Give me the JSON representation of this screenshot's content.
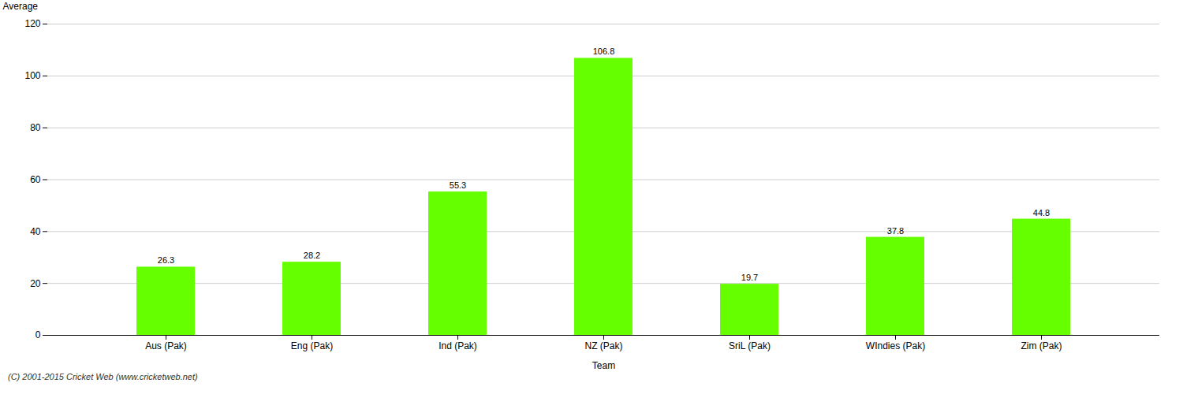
{
  "chart_data": {
    "type": "bar",
    "categories": [
      "Aus (Pak)",
      "Eng (Pak)",
      "Ind (Pak)",
      "NZ (Pak)",
      "SriL (Pak)",
      "WIndies (Pak)",
      "Zim (Pak)"
    ],
    "values": [
      26.3,
      28.2,
      55.3,
      106.8,
      19.7,
      37.8,
      44.8
    ],
    "color": "#66ff00",
    "xlabel": "Team",
    "ylabel": "Average",
    "ylim": [
      0,
      120
    ],
    "yticks": [
      0,
      20,
      40,
      60,
      80,
      100,
      120
    ],
    "grid": true,
    "data_labels": true,
    "caption": "(C) 2001-2015 Cricket Web (www.cricketweb.net)"
  }
}
